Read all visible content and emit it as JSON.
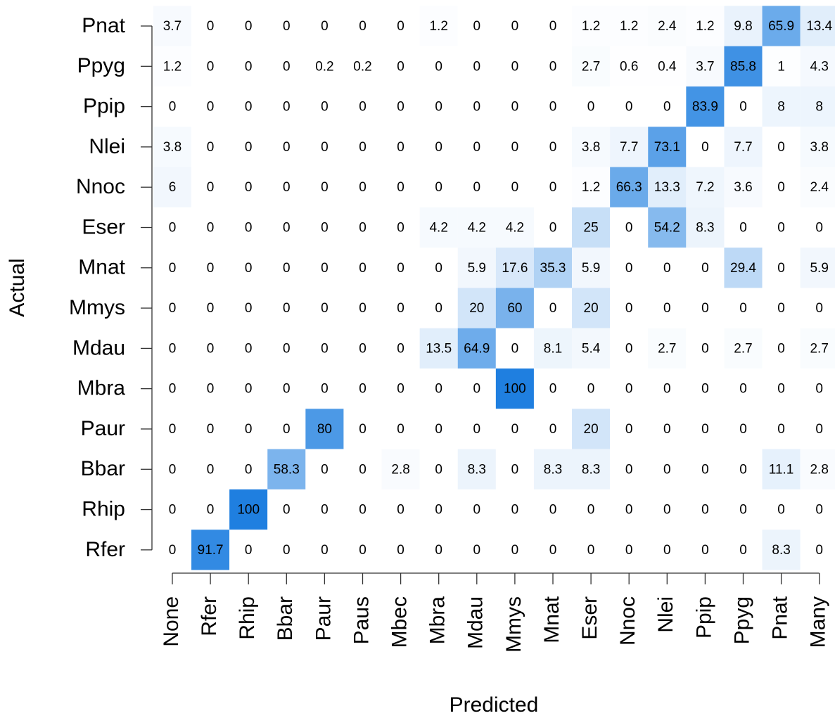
{
  "chart_data": {
    "type": "heatmap",
    "xlabel": "Predicted",
    "ylabel": "Actual",
    "x": [
      "None",
      "Rfer",
      "Rhip",
      "Bbar",
      "Paur",
      "Paus",
      "Mbec",
      "Mbra",
      "Mdau",
      "Mmys",
      "Mnat",
      "Eser",
      "Nnoc",
      "Nlei",
      "Ppip",
      "Ppyg",
      "Pnat",
      "Many"
    ],
    "y": [
      "Pnat",
      "Ppyg",
      "Ppip",
      "Nlei",
      "Nnoc",
      "Eser",
      "Mnat",
      "Mmys",
      "Mdau",
      "Mbra",
      "Paur",
      "Bbar",
      "Rhip",
      "Rfer"
    ],
    "values": [
      [
        3.7,
        0,
        0,
        0,
        0,
        0,
        0,
        1.2,
        0,
        0,
        0,
        1.2,
        1.2,
        2.4,
        1.2,
        9.8,
        65.9,
        13.4
      ],
      [
        1.2,
        0,
        0,
        0,
        0.2,
        0.2,
        0,
        0,
        0,
        0,
        0,
        2.7,
        0.6,
        0.4,
        3.7,
        85.8,
        1,
        4.3
      ],
      [
        0,
        0,
        0,
        0,
        0,
        0,
        0,
        0,
        0,
        0,
        0,
        0,
        0,
        0,
        83.9,
        0,
        8,
        8
      ],
      [
        3.8,
        0,
        0,
        0,
        0,
        0,
        0,
        0,
        0,
        0,
        0,
        3.8,
        7.7,
        73.1,
        0,
        7.7,
        0,
        3.8
      ],
      [
        6,
        0,
        0,
        0,
        0,
        0,
        0,
        0,
        0,
        0,
        0,
        1.2,
        66.3,
        13.3,
        7.2,
        3.6,
        0,
        2.4
      ],
      [
        0,
        0,
        0,
        0,
        0,
        0,
        0,
        4.2,
        4.2,
        4.2,
        0,
        25,
        0,
        54.2,
        8.3,
        0,
        0,
        0
      ],
      [
        0,
        0,
        0,
        0,
        0,
        0,
        0,
        0,
        5.9,
        17.6,
        35.3,
        5.9,
        0,
        0,
        0,
        29.4,
        0,
        5.9
      ],
      [
        0,
        0,
        0,
        0,
        0,
        0,
        0,
        0,
        20,
        60,
        0,
        20,
        0,
        0,
        0,
        0,
        0,
        0
      ],
      [
        0,
        0,
        0,
        0,
        0,
        0,
        0,
        13.5,
        64.9,
        0,
        8.1,
        5.4,
        0,
        2.7,
        0,
        2.7,
        0,
        2.7
      ],
      [
        0,
        0,
        0,
        0,
        0,
        0,
        0,
        0,
        0,
        100,
        0,
        0,
        0,
        0,
        0,
        0,
        0,
        0
      ],
      [
        0,
        0,
        0,
        0,
        80,
        0,
        0,
        0,
        0,
        0,
        0,
        20,
        0,
        0,
        0,
        0,
        0,
        0
      ],
      [
        0,
        0,
        0,
        58.3,
        0,
        0,
        2.8,
        0,
        8.3,
        0,
        8.3,
        8.3,
        0,
        0,
        0,
        0,
        11.1,
        2.8
      ],
      [
        0,
        0,
        100,
        0,
        0,
        0,
        0,
        0,
        0,
        0,
        0,
        0,
        0,
        0,
        0,
        0,
        0,
        0
      ],
      [
        0,
        91.7,
        0,
        0,
        0,
        0,
        0,
        0,
        0,
        0,
        0,
        0,
        0,
        0,
        0,
        0,
        8.3,
        0
      ]
    ],
    "colors": [
      "#ffffff",
      "#1f7fe0"
    ]
  }
}
